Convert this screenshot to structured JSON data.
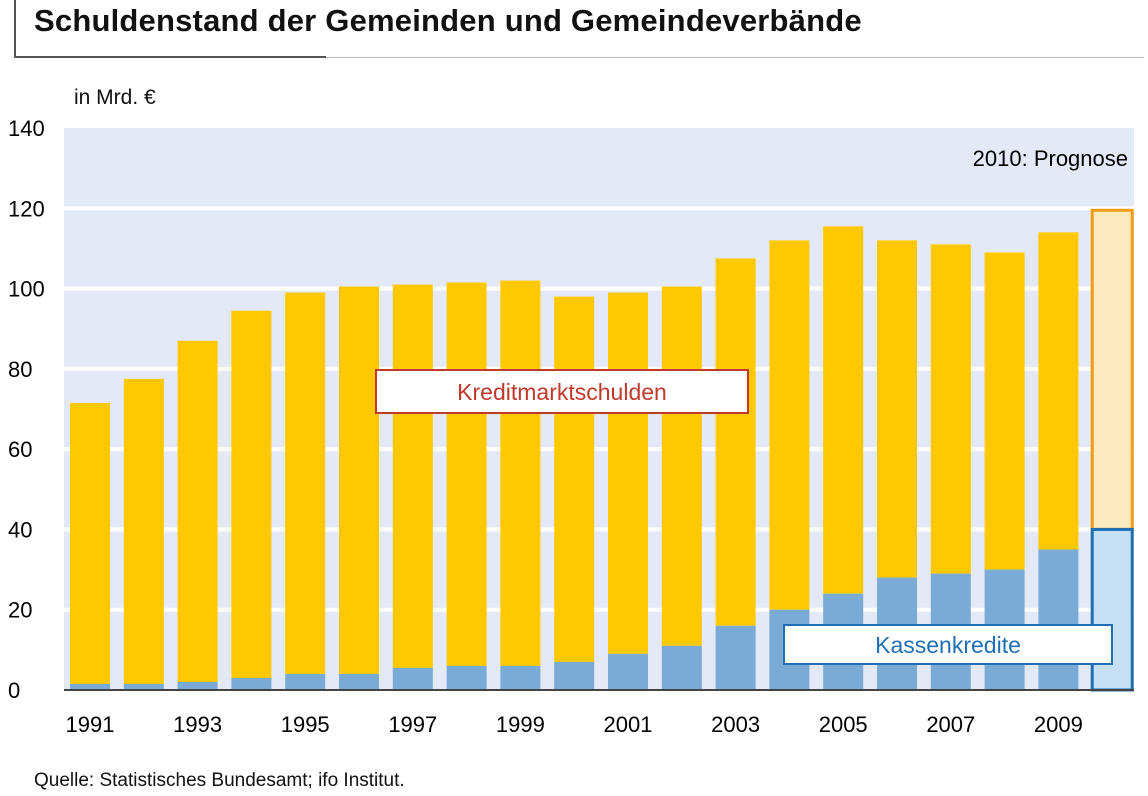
{
  "title": "Schuldenstand der Gemeinden und Gemeindeverbände",
  "unit_label": "in Mrd. €",
  "prognosis_note": "2010: Prognose",
  "source": "Quelle: Statistisches Bundesamt; ifo Institut.",
  "chart_data": {
    "type": "bar",
    "stacked": true,
    "x": [
      1991,
      1992,
      1993,
      1994,
      1995,
      1996,
      1997,
      1998,
      1999,
      2000,
      2001,
      2002,
      2003,
      2004,
      2005,
      2006,
      2007,
      2008,
      2009,
      2010
    ],
    "x_tick_labels": [
      "1991",
      "1993",
      "1995",
      "1997",
      "1999",
      "2001",
      "2003",
      "2005",
      "2007",
      "2009"
    ],
    "series": [
      {
        "name": "Kassenkredite",
        "color": "#7aaad6",
        "values": [
          1.5,
          1.5,
          2,
          3,
          4,
          4,
          5.5,
          6,
          6,
          7,
          9,
          11,
          16,
          20,
          24,
          28,
          29,
          30,
          35,
          40
        ]
      },
      {
        "name": "Kreditmarktschulden",
        "color": "#ffc800",
        "values": [
          70,
          76,
          85,
          91.5,
          95,
          96.5,
          95.5,
          95.5,
          96,
          91,
          90,
          89.5,
          91.5,
          92,
          91.5,
          84,
          82,
          79,
          79,
          79.5
        ]
      }
    ],
    "forecast_year": 2010,
    "forecast_colors": {
      "kassen_fill": "#c5e0f5",
      "kassen_stroke": "#1f6fb5",
      "kredit_fill": "#fce9be",
      "kredit_stroke": "#f39c12"
    },
    "ylim": [
      0,
      140
    ],
    "y_ticks": [
      0,
      20,
      40,
      60,
      80,
      100,
      120,
      140
    ],
    "grid": true,
    "plot_bg": "#e3e9f6",
    "label_colors": {
      "kreditmarkt": "#c0392b",
      "kassen": "#1f6fb5"
    }
  }
}
